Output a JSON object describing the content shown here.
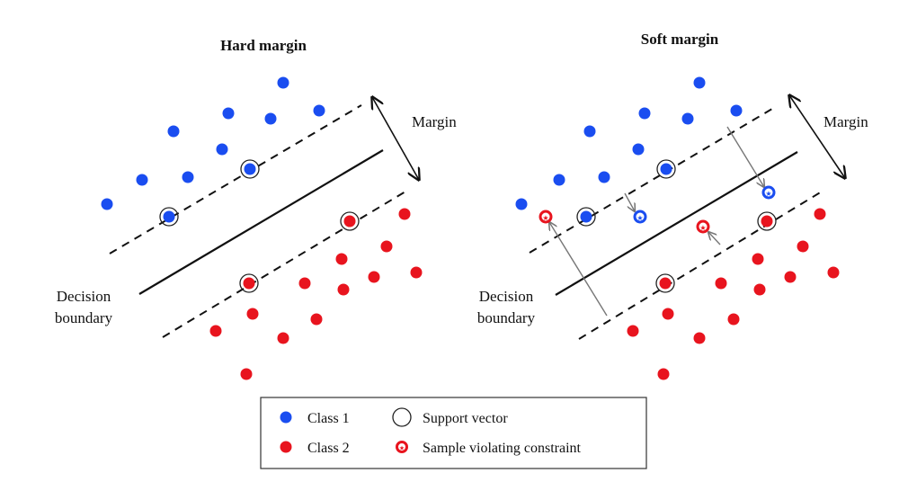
{
  "panels": {
    "hard": {
      "title": "Hard margin",
      "margin_label": "Margin",
      "boundary_label_line1": "Decision",
      "boundary_label_line2": "boundary"
    },
    "soft": {
      "title": "Soft margin",
      "margin_label": "Margin",
      "boundary_label_line1": "Decision",
      "boundary_label_line2": "boundary"
    }
  },
  "legend": {
    "class1": "Class 1",
    "class2": "Class 2",
    "support_vector": "Support vector",
    "violating": "Sample violating constraint"
  },
  "colors": {
    "class1": "#1a4df0",
    "class2": "#e8141e",
    "line": "#111111",
    "arrow_gray": "#777777"
  }
}
